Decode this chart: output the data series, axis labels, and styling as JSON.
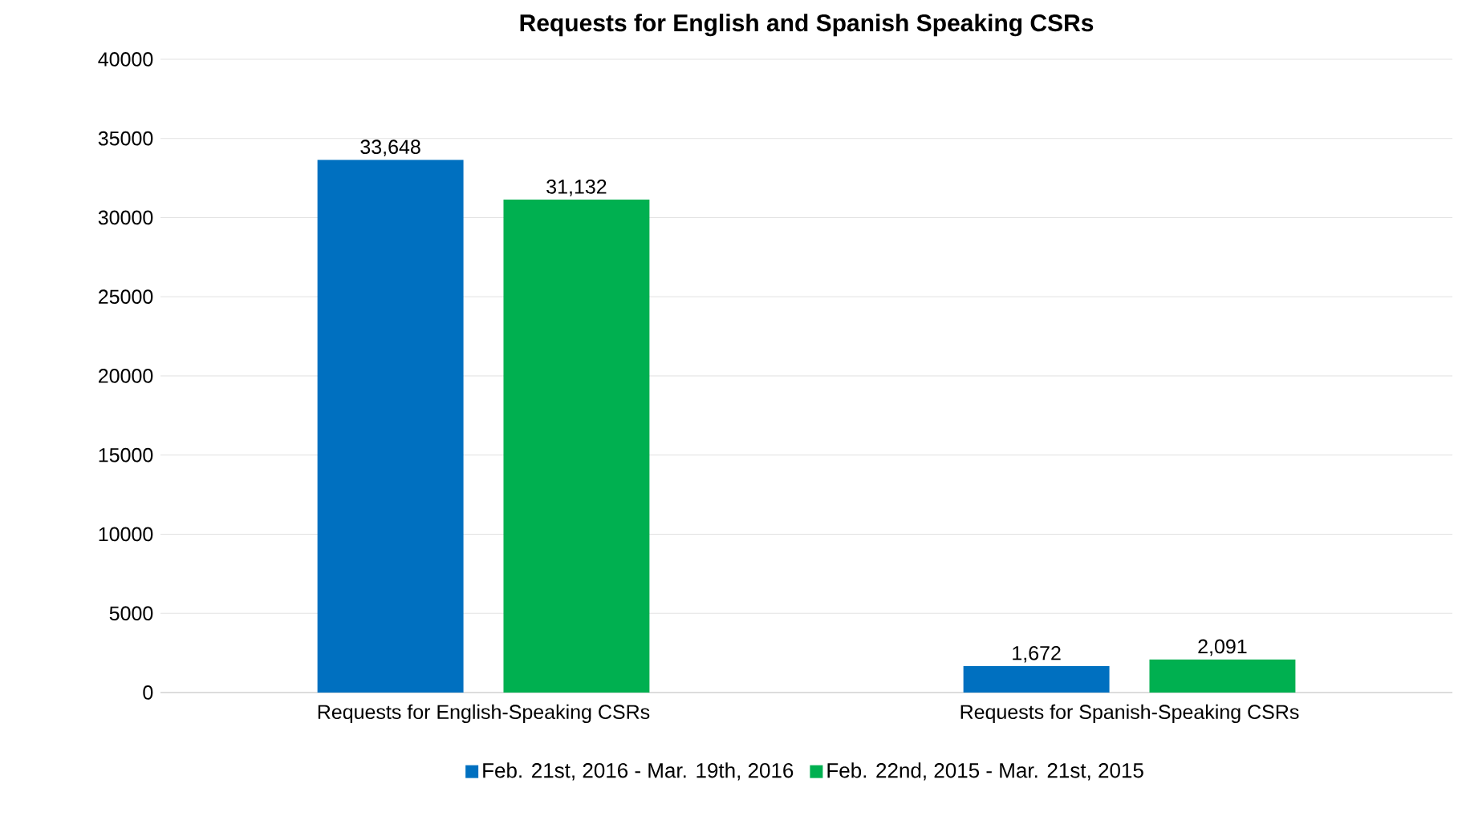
{
  "chart_data": {
    "type": "bar",
    "title": "Requests for English and Spanish Speaking CSRs",
    "categories": [
      "Requests for English-Speaking CSRs",
      "Requests for Spanish-Speaking CSRs"
    ],
    "series": [
      {
        "name": "Feb. 21st, 2016 - Mar. 19th, 2016",
        "color": "#0070c0",
        "values": [
          33648,
          1672
        ],
        "value_labels": [
          "33,648",
          "1,672"
        ]
      },
      {
        "name": "Feb. 22nd, 2015 - Mar. 21st, 2015",
        "color": "#00b050",
        "values": [
          31132,
          2091
        ],
        "value_labels": [
          "31,132",
          "2,091"
        ]
      }
    ],
    "ylim": [
      0,
      40000
    ],
    "yticks": [
      0,
      5000,
      10000,
      15000,
      20000,
      25000,
      30000,
      35000,
      40000
    ],
    "grid": "y",
    "legend": "bottom"
  }
}
